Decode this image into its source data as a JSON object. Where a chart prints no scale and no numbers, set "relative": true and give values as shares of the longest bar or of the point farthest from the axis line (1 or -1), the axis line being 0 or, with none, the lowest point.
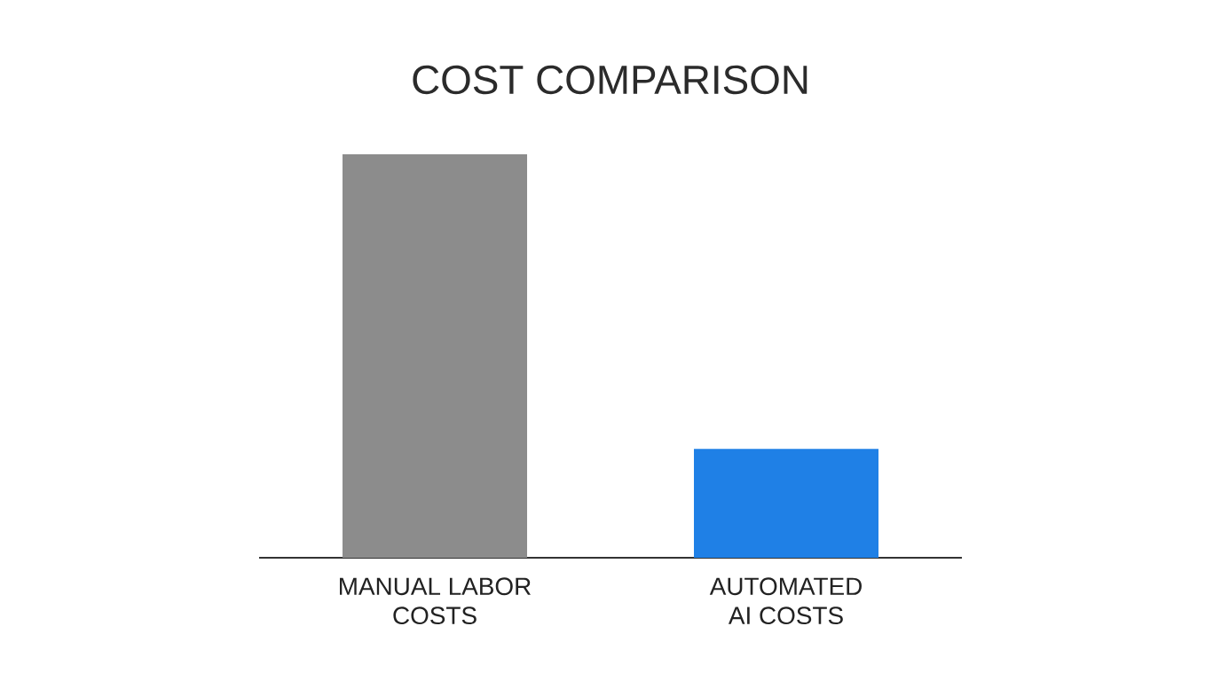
{
  "chart_data": {
    "type": "bar",
    "title": "COST COMPARISON",
    "categories": [
      "MANUAL LABOR COSTS",
      "AUTOMATED AI COSTS"
    ],
    "values": [
      1,
      0.27
    ],
    "colors": [
      "#8c8c8c",
      "#1f80e6"
    ],
    "relative": true
  }
}
